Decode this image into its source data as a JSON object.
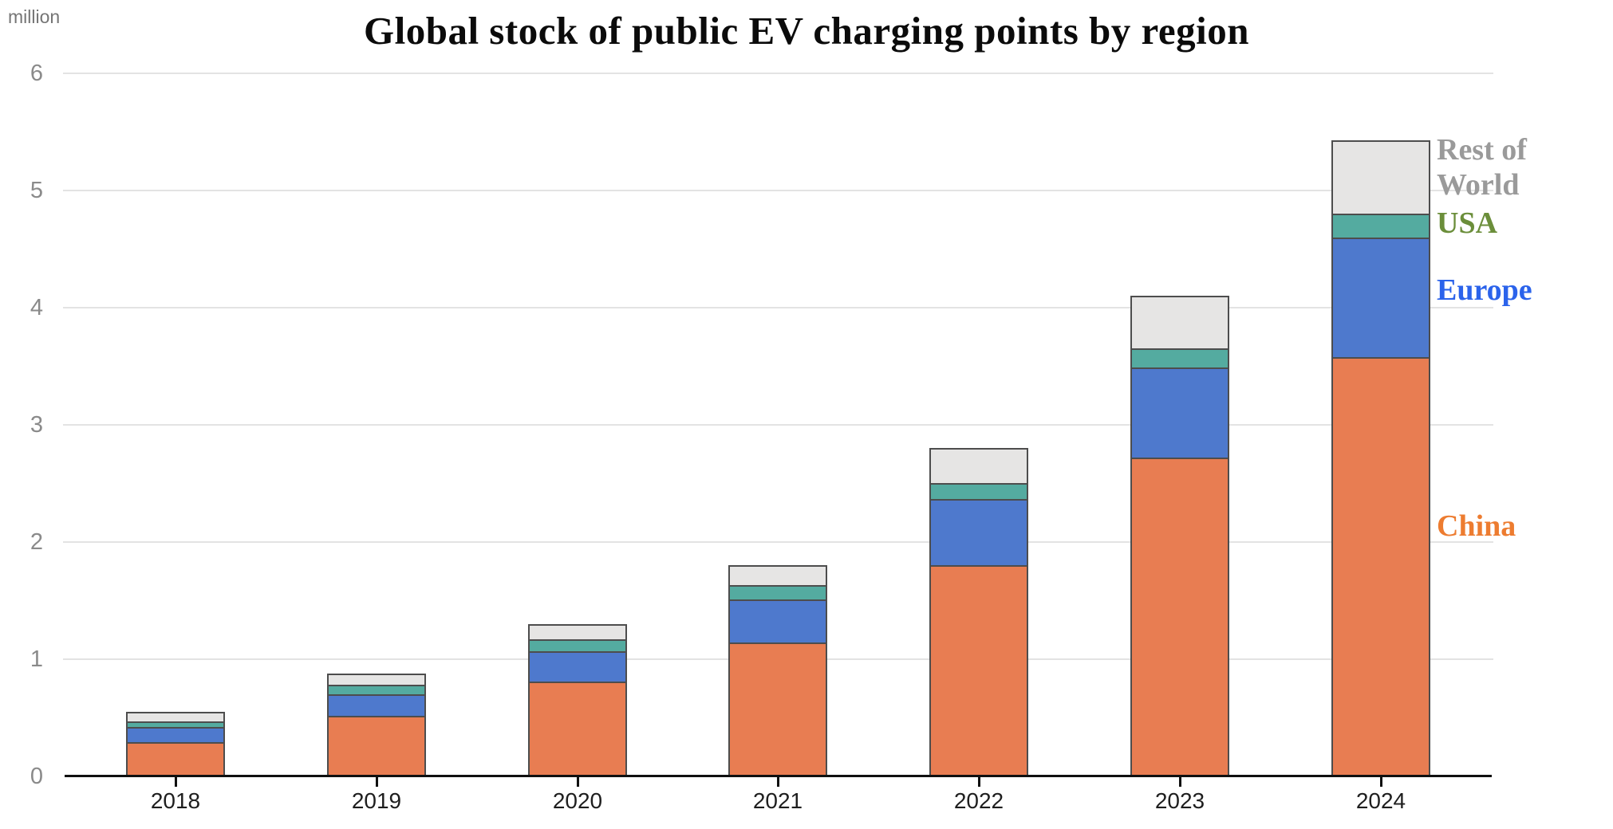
{
  "chart_data": {
    "type": "bar",
    "subtype": "stacked-vertical",
    "title": "Global stock of public EV charging points by region",
    "unit_label": "million",
    "xlabel": "",
    "ylabel": "million",
    "categories": [
      "2018",
      "2019",
      "2020",
      "2021",
      "2022",
      "2023",
      "2024"
    ],
    "series": [
      {
        "name": "China",
        "fill_color": "#E87D52",
        "values": [
          0.29,
          0.52,
          0.81,
          1.14,
          1.8,
          2.72,
          3.58
        ]
      },
      {
        "name": "Europe",
        "fill_color": "#4E79CD",
        "values": [
          0.13,
          0.18,
          0.26,
          0.37,
          0.57,
          0.77,
          1.02
        ]
      },
      {
        "name": "USA",
        "fill_color": "#54ABA0",
        "values": [
          0.05,
          0.08,
          0.1,
          0.12,
          0.13,
          0.16,
          0.2
        ]
      },
      {
        "name": "Rest of World",
        "fill_color": "#E6E5E4",
        "values": [
          0.08,
          0.1,
          0.13,
          0.17,
          0.3,
          0.45,
          0.63
        ]
      }
    ],
    "totals": [
      0.55,
      0.88,
      1.3,
      1.8,
      2.8,
      4.1,
      5.43
    ],
    "y_ticks": [
      0,
      1,
      2,
      3,
      4,
      5,
      6
    ],
    "ylim": [
      0,
      6
    ],
    "grid": true,
    "bar_border_color": "#4D4D4D",
    "legend_position": "right-of-last-bar",
    "legend": [
      {
        "label": "Rest of World",
        "color": "#9A9A9A"
      },
      {
        "label": "USA",
        "color": "#6B8E3A"
      },
      {
        "label": "Europe",
        "color": "#2B63EB"
      },
      {
        "label": "China",
        "color": "#ED7C30"
      }
    ]
  }
}
